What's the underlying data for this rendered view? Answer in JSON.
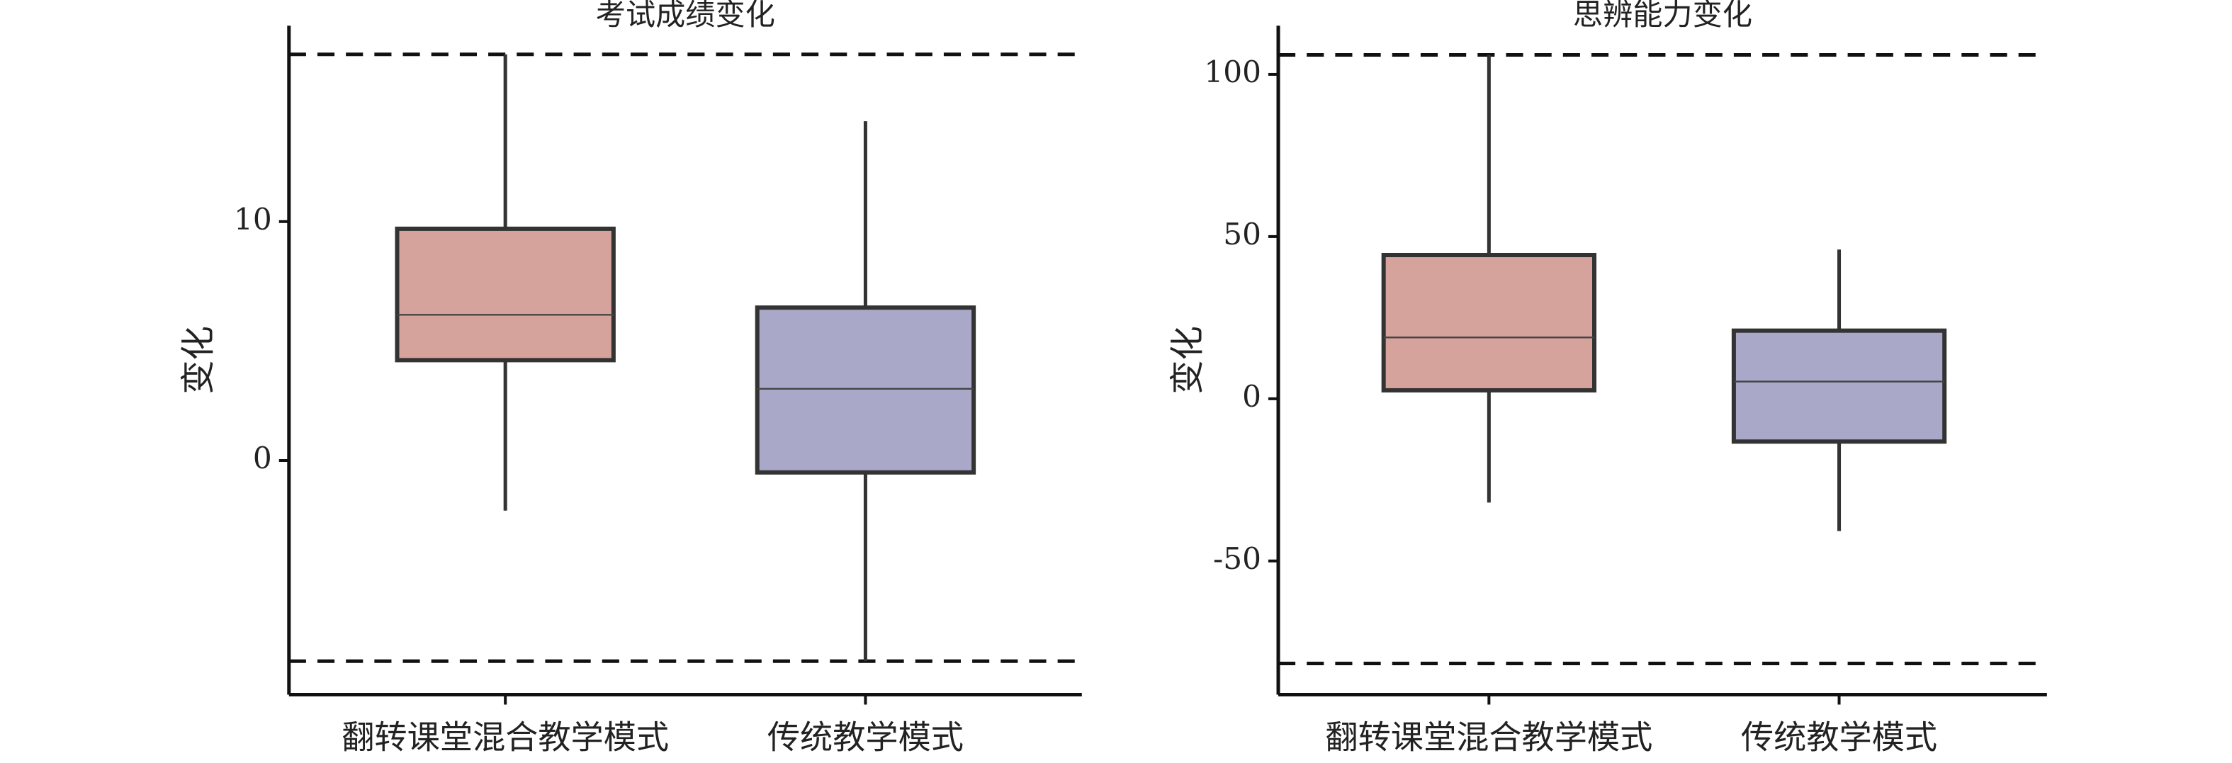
{
  "chart_data": [
    {
      "type": "box",
      "title": "考试成绩变化",
      "ylabel": "变化",
      "categories": [
        "翻转课堂混合教学模式",
        "传统教学模式"
      ],
      "boxes": [
        {
          "whislo": -2.1,
          "q1": 4.2,
          "med": 6.1,
          "q3": 9.7,
          "whishi": 17,
          "color": "#d6a39c"
        },
        {
          "whislo": -8.4,
          "q1": -0.5,
          "med": 3.0,
          "q3": 6.4,
          "whishi": 14.2,
          "color": "#aaa8c8"
        }
      ],
      "hlines": [
        17,
        -8.4
      ],
      "ylim": [
        -9.8,
        18.2
      ],
      "yticks": [
        0,
        10
      ]
    },
    {
      "type": "box",
      "title": "思辨能力变化",
      "ylabel": "变化",
      "categories": [
        "翻转课堂混合教学模式",
        "传统教学模式"
      ],
      "boxes": [
        {
          "whislo": -32,
          "q1": 2.6,
          "med": 18.9,
          "q3": 44.3,
          "whishi": 106,
          "color": "#d6a39c"
        },
        {
          "whislo": -40.8,
          "q1": -13.2,
          "med": 5.3,
          "q3": 21,
          "whishi": 46,
          "color": "#aaa8c8"
        }
      ],
      "hlines": [
        106,
        -81.6
      ],
      "ylim": [
        -91.2,
        115
      ],
      "yticks": [
        -50,
        0,
        50,
        100
      ]
    }
  ]
}
